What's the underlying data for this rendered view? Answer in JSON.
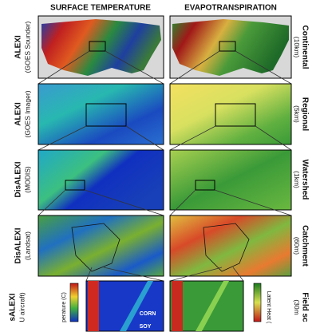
{
  "headers": {
    "left": "SURFACE TEMPERATURE",
    "right": "EVAPOTRANSPIRATION"
  },
  "rows": [
    {
      "model": "ALEXI",
      "sensor": "(GOES Sounder)",
      "scale": "Continental",
      "resolution": "(10km)"
    },
    {
      "model": "ALEXI",
      "sensor": "(GOES Imager)",
      "scale": "Regional",
      "resolution": "(5km)"
    },
    {
      "model": "DisALEXI",
      "sensor": "(MODIS)",
      "scale": "Watershed",
      "resolution": "(1km)"
    },
    {
      "model": "DisALEXI",
      "sensor": "(Landsat)",
      "scale": "Catchment",
      "resolution": "(60m)"
    },
    {
      "model": "sALEXI",
      "sensor": "U aircraft)",
      "scale": "Field sc",
      "resolution": "(30m"
    }
  ],
  "annotations": {
    "crop1": "CORN",
    "crop2": "SOY",
    "temp_colorbar": "perature (C)",
    "et_colorbar": "Latent Heat ("
  }
}
